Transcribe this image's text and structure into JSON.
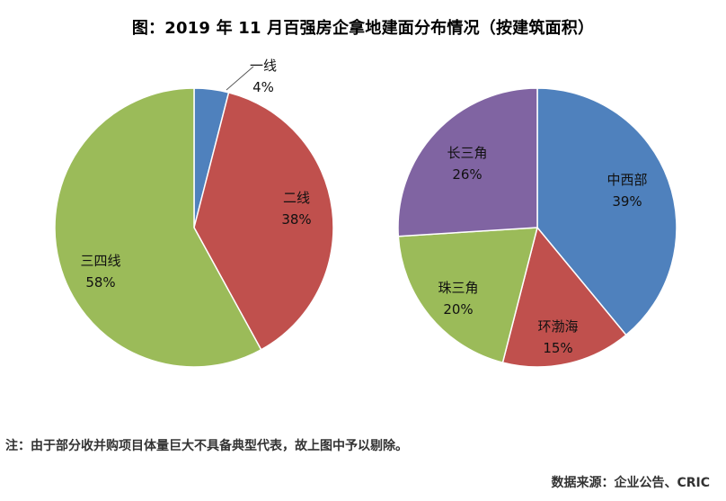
{
  "title": "图：2019 年 11 月百强房企拿地建面分布情况（按建筑面积）",
  "note": "注：由于部分收并购项目体量巨大不具备典型代表，故上图中予以剔除。",
  "source": "数据来源：企业公告、CRIC",
  "chart_data": [
    {
      "type": "pie",
      "slices": [
        {
          "label": "一线",
          "value": 4,
          "display": "4%",
          "color": "#4f81bd"
        },
        {
          "label": "二线",
          "value": 38,
          "display": "38%",
          "color": "#c0504d"
        },
        {
          "label": "三四线",
          "value": 58,
          "display": "58%",
          "color": "#9bbb59"
        }
      ]
    },
    {
      "type": "pie",
      "slices": [
        {
          "label": "中西部",
          "value": 39,
          "display": "39%",
          "color": "#4f81bd"
        },
        {
          "label": "环渤海",
          "value": 15,
          "display": "15%",
          "color": "#c0504d"
        },
        {
          "label": "珠三角",
          "value": 20,
          "display": "20%",
          "color": "#9bbb59"
        },
        {
          "label": "长三角",
          "value": 26,
          "display": "26%",
          "color": "#8064a2"
        }
      ]
    }
  ]
}
